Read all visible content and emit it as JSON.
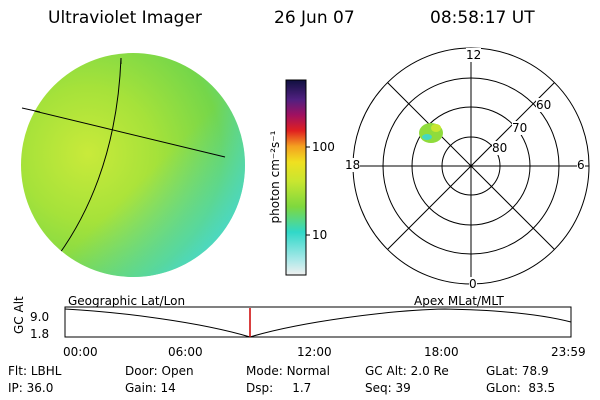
{
  "header": {
    "instrument": "Ultraviolet Imager",
    "date": "26 Jun 07",
    "time": "08:58:17 UT"
  },
  "colorbar": {
    "unit_label": "photon cm⁻²s⁻¹",
    "ticks": [
      "100",
      "10"
    ]
  },
  "polar": {
    "mlt_labels": {
      "top": "12",
      "left": "18",
      "right": "6",
      "bottom": "0"
    },
    "lat_labels": [
      "60",
      "70",
      "80"
    ]
  },
  "track": {
    "left_title": "Geographic Lat/Lon",
    "right_title": "Apex MLat/MLT",
    "axis_label": "GC Alt",
    "y_max": "9.0",
    "y_min": "1.8",
    "x_ticks": [
      "00:00",
      "06:00",
      "12:00",
      "18:00",
      "23:59"
    ],
    "marker_time": "08:58"
  },
  "info": {
    "row1": [
      {
        "label": "Flt:",
        "value": "LBHL"
      },
      {
        "label": "Door:",
        "value": "Open"
      },
      {
        "label": "Mode:",
        "value": "Normal"
      },
      {
        "label": "GC Alt:",
        "value": "2.0 Re"
      },
      {
        "label": "GLat:",
        "value": "78.9"
      }
    ],
    "row2": [
      {
        "label": "IP:",
        "value": "36.0"
      },
      {
        "label": "Gain:",
        "value": "14"
      },
      {
        "label": "Dsp:",
        "value": "1.7"
      },
      {
        "label": "Seq:",
        "value": "39"
      },
      {
        "label": "GLon:",
        "value": "83.5"
      }
    ]
  },
  "colors": {
    "marker": "#cc0000",
    "image_green": "#8fdc3c",
    "image_cyan": "#44d8d8"
  }
}
